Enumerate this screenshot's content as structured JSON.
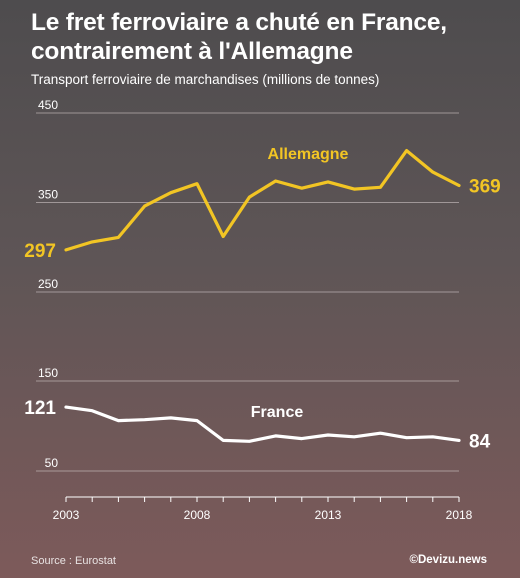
{
  "title": "Le fret ferroviaire a chuté en France, contrairement à l'Allemagne",
  "subtitle": "Transport ferroviaire de marchandises (millions de tonnes)",
  "source": "Source : Eurostat",
  "credit": "©Devizu.news",
  "colors": {
    "germany": "#f2c524",
    "france": "#ffffff",
    "grid": "#cfc6c6",
    "background_top": "#4e4c4e",
    "background_bottom": "#7d5a5a"
  },
  "chart_data": {
    "type": "line",
    "title": "Le fret ferroviaire a chuté en France, contrairement à l'Allemagne",
    "ylabel": "Transport ferroviaire de marchandises (millions de tonnes)",
    "x": [
      2003,
      2004,
      2005,
      2006,
      2007,
      2008,
      2009,
      2010,
      2011,
      2012,
      2013,
      2014,
      2015,
      2016,
      2017,
      2018
    ],
    "xticks": [
      "2003",
      "2008",
      "2013",
      "2018"
    ],
    "yticks": [
      "450",
      "350",
      "250",
      "150",
      "50"
    ],
    "ylim": [
      0,
      450
    ],
    "axis_break": [
      150,
      250
    ],
    "grid": true,
    "series": [
      {
        "name": "Allemagne",
        "values": [
          297,
          306,
          311,
          346,
          361,
          371,
          312,
          356,
          374,
          366,
          373,
          365,
          367,
          408,
          384,
          369
        ],
        "start_label": "297",
        "end_label": "369"
      },
      {
        "name": "France",
        "values": [
          121,
          117,
          106,
          107,
          109,
          106,
          84,
          83,
          89,
          86,
          90,
          88,
          92,
          87,
          88,
          84
        ],
        "start_label": "121",
        "end_label": "84"
      }
    ]
  }
}
